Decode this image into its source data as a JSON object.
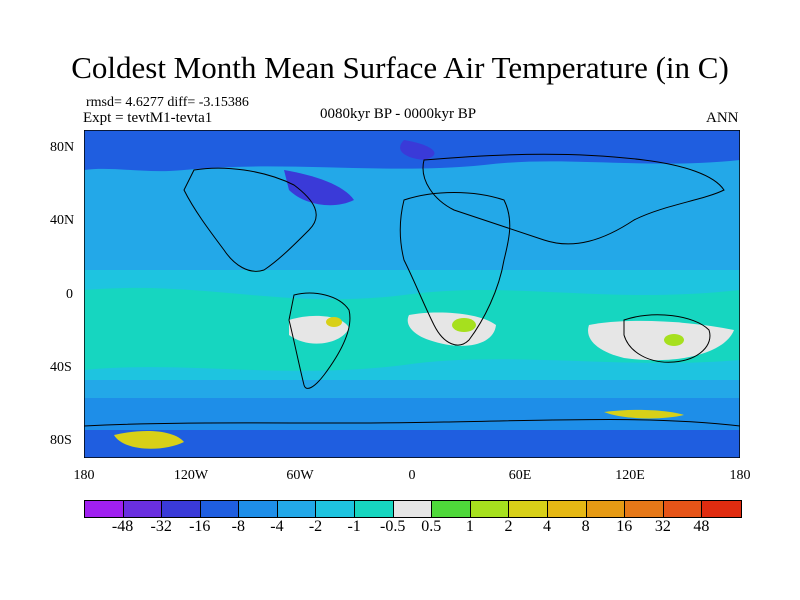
{
  "title": "Coldest Month Mean Surface Air Temperature (in C)",
  "stats": "rmsd= 4.6277 diff= -3.15386",
  "experiment": "Expt = tevtM1-tevta1",
  "period": "0080kyr BP - 0000kyr BP",
  "season": "ANN",
  "lat_labels": [
    "80N",
    "40N",
    "0",
    "40S",
    "80S"
  ],
  "lon_labels": [
    "180",
    "120W",
    "60W",
    "0",
    "60E",
    "120E",
    "180"
  ],
  "colorbar": {
    "colors": [
      "#a020f0",
      "#6a2fe0",
      "#3a3ad8",
      "#1f5ee0",
      "#1e8ee8",
      "#23a8e8",
      "#1ec4e0",
      "#16d6c0",
      "#e6e6e6",
      "#4ed83a",
      "#a6e01e",
      "#d8d018",
      "#e6b814",
      "#e69a14",
      "#e67818",
      "#e65418",
      "#e02c10"
    ],
    "labels": [
      "-48",
      "-32",
      "-16",
      "-8",
      "-4",
      "-2",
      "-1",
      "-0.5",
      "0.5",
      "1",
      "2",
      "4",
      "8",
      "16",
      "32",
      "48"
    ]
  }
}
